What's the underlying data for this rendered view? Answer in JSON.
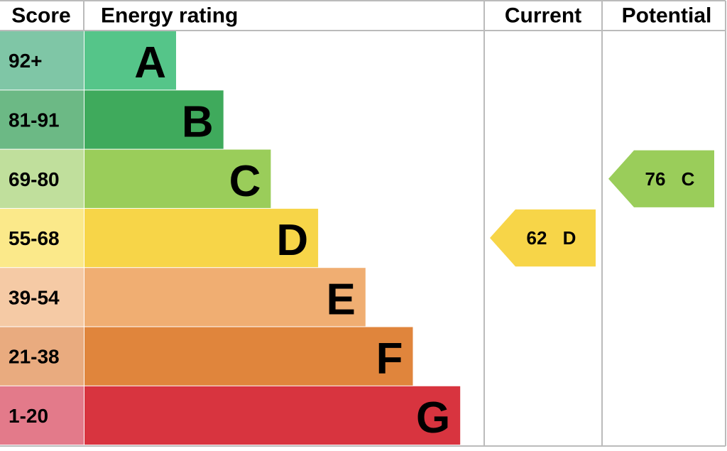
{
  "headers": {
    "score": "Score",
    "rating": "Energy rating",
    "current": "Current",
    "potential": "Potential"
  },
  "bands": [
    {
      "score": "92+",
      "letter": "A",
      "color": "#55c589",
      "score_color": "#7fc6a6"
    },
    {
      "score": "81-91",
      "letter": "B",
      "color": "#3faa5c",
      "score_color": "#6cb985"
    },
    {
      "score": "69-80",
      "letter": "C",
      "color": "#9acd5a",
      "score_color": "#c0df9c"
    },
    {
      "score": "55-68",
      "letter": "D",
      "color": "#f7d548",
      "score_color": "#fbe98a"
    },
    {
      "score": "39-54",
      "letter": "E",
      "color": "#f0ae72",
      "score_color": "#f5caa5"
    },
    {
      "score": "21-38",
      "letter": "F",
      "color": "#e0853c",
      "score_color": "#e9ab7f"
    },
    {
      "score": "1-20",
      "letter": "G",
      "color": "#d8343f",
      "score_color": "#e37a8a"
    }
  ],
  "current": {
    "score": "62",
    "band": "D"
  },
  "potential": {
    "score": "76",
    "band": "C"
  }
}
